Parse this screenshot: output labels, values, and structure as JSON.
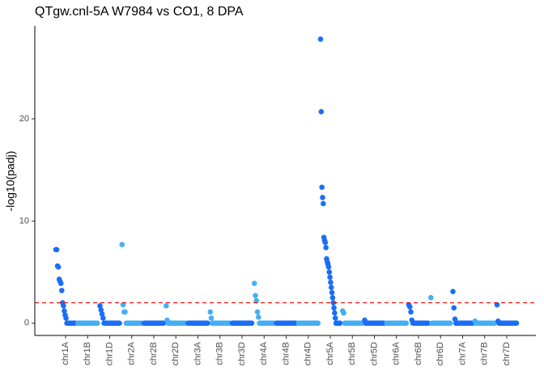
{
  "chart_data": {
    "type": "scatter",
    "title": "QTgw.cnl-5A W7984 vs CO1, 8 DPA",
    "y_label": "-log10(padj)",
    "ylim": [
      -1.2,
      29.1
    ],
    "yticks": [
      0,
      10,
      20
    ],
    "grid": false,
    "threshold": 2,
    "threshold_color": "#ff0000",
    "colors": [
      "#1a6ef5",
      "#45aef5"
    ],
    "categories": [
      "chr1A",
      "chr1B",
      "chr1D",
      "chr2A",
      "chr2B",
      "chr2D",
      "chr3A",
      "chr3B",
      "chr3D",
      "chr4A",
      "chr4B",
      "chr4D",
      "chr5A",
      "chr5B",
      "chr5D",
      "chr6A",
      "chr6B",
      "chr6D",
      "chr7A",
      "chr7B",
      "chr7D"
    ],
    "values": [
      [
        7.2,
        7.2,
        5.6,
        5.5,
        4.3,
        4.1,
        3.9,
        3.2,
        2.0,
        1.7,
        1.2,
        0.8,
        0.5,
        0,
        0,
        0,
        0,
        0,
        0,
        0,
        0,
        0,
        0,
        0
      ],
      [
        0,
        0,
        0,
        0,
        0,
        0,
        0,
        0,
        0,
        0,
        0,
        0,
        0,
        0,
        0,
        0,
        0,
        0,
        0,
        0
      ],
      [
        1.7,
        1.3,
        0.9,
        0.5,
        0,
        0,
        0,
        0,
        0,
        0,
        0,
        0,
        0,
        0,
        0,
        0,
        0,
        0,
        0,
        0
      ],
      [
        7.7,
        1.8,
        1.1,
        1.1,
        0,
        0,
        0,
        0,
        0,
        0,
        0,
        0,
        0,
        0,
        0,
        0,
        0,
        0,
        0,
        0
      ],
      [
        0,
        0,
        0,
        0,
        0,
        0,
        0,
        0,
        0,
        0,
        0,
        0,
        0,
        0,
        0,
        0,
        0,
        0,
        0,
        0
      ],
      [
        1.7,
        0.3,
        0,
        0,
        0,
        0,
        0,
        0,
        0,
        0,
        0,
        0,
        0,
        0,
        0,
        0,
        0,
        0,
        0,
        0
      ],
      [
        0,
        0,
        0,
        0,
        0,
        0,
        0,
        0,
        0,
        0,
        0,
        0,
        0,
        0,
        0,
        0,
        0,
        0,
        0,
        0
      ],
      [
        1.1,
        0.5,
        0,
        0,
        0,
        0,
        0,
        0,
        0,
        0,
        0,
        0,
        0,
        0,
        0,
        0,
        0,
        0,
        0,
        0
      ],
      [
        0,
        0,
        0,
        0,
        0,
        0,
        0,
        0,
        0,
        0,
        0,
        0,
        0,
        0,
        0,
        0,
        0,
        0,
        0,
        0
      ],
      [
        3.9,
        2.7,
        2.2,
        1.1,
        0.6,
        0,
        0,
        0,
        0,
        0,
        0,
        0,
        0,
        0,
        0,
        0,
        0,
        0,
        0,
        0
      ],
      [
        0,
        0,
        0,
        0,
        0,
        0,
        0,
        0,
        0,
        0,
        0,
        0,
        0,
        0,
        0,
        0,
        0,
        0,
        0,
        0
      ],
      [
        0,
        0,
        0,
        0,
        0,
        0,
        0,
        0,
        0,
        0,
        0,
        0,
        0,
        0,
        0,
        0,
        0,
        0,
        0,
        0
      ],
      [
        27.8,
        20.7,
        13.3,
        12.3,
        11.7,
        8.4,
        8.1,
        7.9,
        7.4,
        6.3,
        6.0,
        5.8,
        5.5,
        5.0,
        4.5,
        4.0,
        3.5,
        3.0,
        2.5,
        2.0,
        1.5,
        1.0,
        0.5,
        0,
        0,
        0,
        0,
        0,
        0,
        0
      ],
      [
        1.2,
        1.0,
        0,
        0,
        0,
        0,
        0,
        0,
        0,
        0,
        0,
        0,
        0,
        0,
        0,
        0,
        0,
        0,
        0,
        0
      ],
      [
        0.3,
        0,
        0,
        0,
        0,
        0,
        0,
        0,
        0,
        0,
        0,
        0,
        0,
        0,
        0,
        0,
        0,
        0,
        0,
        0
      ],
      [
        0,
        0,
        0,
        0,
        0,
        0,
        0,
        0,
        0,
        0,
        0,
        0,
        0,
        0,
        0,
        0,
        0,
        0,
        0,
        0
      ],
      [
        1.8,
        1.6,
        1.1,
        0.3,
        0,
        0,
        0,
        0,
        0,
        0,
        0,
        0,
        0,
        0,
        0,
        0,
        0,
        0,
        0,
        0
      ],
      [
        2.5,
        0,
        0,
        0,
        0,
        0,
        0,
        0,
        0,
        0,
        0,
        0,
        0,
        0,
        0,
        0,
        0,
        0,
        0,
        0
      ],
      [
        3.1,
        1.5,
        0.4,
        0,
        0,
        0,
        0,
        0,
        0,
        0,
        0,
        0,
        0,
        0,
        0,
        0,
        0,
        0,
        0,
        0
      ],
      [
        0.2,
        0,
        0,
        0,
        0,
        0,
        0,
        0,
        0,
        0,
        0,
        0,
        0,
        0,
        0,
        0,
        0,
        0,
        0,
        0
      ],
      [
        1.8,
        0.2,
        0,
        0,
        0,
        0,
        0,
        0,
        0,
        0,
        0,
        0,
        0,
        0,
        0,
        0,
        0,
        0,
        0,
        0
      ]
    ]
  }
}
